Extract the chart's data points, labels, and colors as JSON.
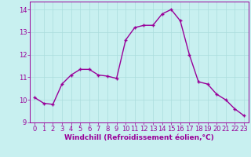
{
  "x": [
    0,
    1,
    2,
    3,
    4,
    5,
    6,
    7,
    8,
    9,
    10,
    11,
    12,
    13,
    14,
    15,
    16,
    17,
    18,
    19,
    20,
    21,
    22,
    23
  ],
  "y": [
    10.1,
    9.85,
    9.8,
    10.7,
    11.1,
    11.35,
    11.35,
    11.1,
    11.05,
    10.95,
    12.65,
    13.2,
    13.3,
    13.3,
    13.8,
    14.0,
    13.5,
    12.0,
    10.8,
    10.7,
    10.25,
    10.0,
    9.6,
    9.3
  ],
  "line_color": "#990099",
  "marker": "+",
  "marker_size": 3,
  "marker_linewidth": 1.0,
  "line_width": 1.0,
  "background_color": "#c8f0f0",
  "grid_color": "#aadddd",
  "xlabel": "Windchill (Refroidissement éolien,°C)",
  "xlabel_color": "#990099",
  "tick_color": "#990099",
  "ylim": [
    9.0,
    14.35
  ],
  "xlim": [
    -0.5,
    23.5
  ],
  "yticks": [
    9,
    10,
    11,
    12,
    13,
    14
  ],
  "xticks": [
    0,
    1,
    2,
    3,
    4,
    5,
    6,
    7,
    8,
    9,
    10,
    11,
    12,
    13,
    14,
    15,
    16,
    17,
    18,
    19,
    20,
    21,
    22,
    23
  ],
  "spine_color": "#990099",
  "fig_bg": "#c8f0f0",
  "tick_labelsize": 6,
  "xlabel_fontsize": 6.5
}
